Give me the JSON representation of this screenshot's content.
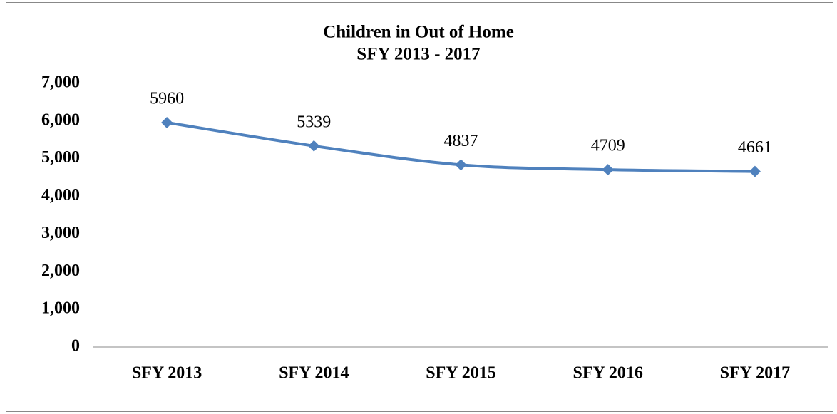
{
  "chart_data": {
    "type": "line",
    "title": "Children in Out of Home",
    "subtitle": "SFY 2013 - 2017",
    "categories": [
      "SFY 2013",
      "SFY 2014",
      "SFY 2015",
      "SFY 2016",
      "SFY 2017"
    ],
    "series": [
      {
        "color": "#4f81bd",
        "values": [
          5960,
          5339,
          4837,
          4709,
          4661
        ]
      }
    ],
    "ylim": [
      0,
      7000
    ],
    "yticks": [
      0,
      {
        "value": 1000,
        "label": "1,000"
      },
      {
        "value": 2000,
        "label": "2,000"
      },
      {
        "value": 3000,
        "label": "3,000"
      },
      {
        "value": 4000,
        "label": "4,000"
      },
      {
        "value": 5000,
        "label": "5,000"
      },
      {
        "value": 6000,
        "label": "6,000"
      },
      {
        "value": 7000,
        "label": "7,000"
      }
    ],
    "grid": false,
    "smooth": true,
    "marker": "diamond"
  }
}
